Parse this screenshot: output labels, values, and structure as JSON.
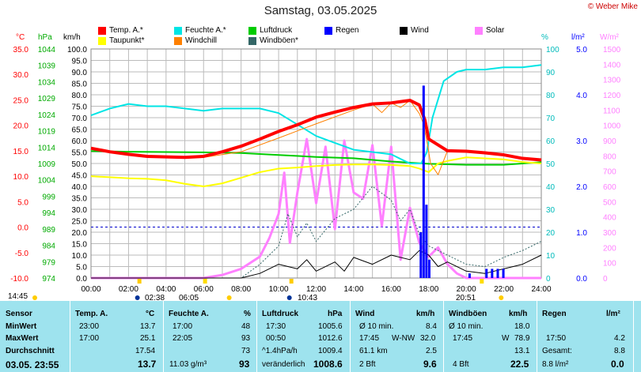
{
  "title": "Samstag, 03.05.2025",
  "credit": "© Weber Mike",
  "units": {
    "temp": "°C",
    "press": "hPa",
    "wind": "km/h",
    "hum": "%",
    "rain": "l/m²",
    "solar": "W/m²"
  },
  "legend": [
    {
      "label": "Temp. A.*",
      "color": "#ff0000"
    },
    {
      "label": "Feuchte A.*",
      "color": "#00e5e5"
    },
    {
      "label": "Luftdruck",
      "color": "#00cc00"
    },
    {
      "label": "Regen",
      "color": "#0000ff"
    },
    {
      "label": "Wind",
      "color": "#000000"
    },
    {
      "label": "Solar",
      "color": "#ff80ff"
    },
    {
      "label": "Taupunkt*",
      "color": "#ffff00"
    },
    {
      "label": "Windchill",
      "color": "#ff8000"
    },
    {
      "label": "Windböen*",
      "color": "#336666"
    }
  ],
  "chart_data": {
    "type": "line",
    "x_ticks": [
      "00:00",
      "02:00",
      "04:00",
      "06:00",
      "08:00",
      "10:00",
      "12:00",
      "14:00",
      "16:00",
      "18:00",
      "20:00",
      "22:00",
      "24:00"
    ],
    "axes": {
      "temp": {
        "ticks": [
          "35.0",
          "30.0",
          "25.0",
          "20.0",
          "15.0",
          "10.0",
          "5.0",
          "0.0",
          "-5.0",
          "-10.0"
        ],
        "range": [
          -10,
          35
        ],
        "unit": "°C"
      },
      "press": {
        "ticks": [
          "1044",
          "1039",
          "1034",
          "1029",
          "1024",
          "1019",
          "1014",
          "1009",
          "1004",
          "999",
          "994",
          "989",
          "984",
          "979",
          "974"
        ],
        "range": [
          974,
          1044
        ],
        "unit": "hPa"
      },
      "wind": {
        "ticks": [
          "100.0",
          "95.0",
          "90.0",
          "85.0",
          "80.0",
          "75.0",
          "70.0",
          "65.0",
          "60.0",
          "55.0",
          "50.0",
          "45.0",
          "40.0",
          "35.0",
          "30.0",
          "25.0",
          "20.0",
          "15.0",
          "10.0",
          "5.0",
          "0.0"
        ],
        "range": [
          0,
          100
        ],
        "unit": "km/h"
      },
      "hum": {
        "ticks": [
          "100",
          "90",
          "80",
          "70",
          "60",
          "50",
          "40",
          "30",
          "20",
          "10",
          "0"
        ],
        "range": [
          0,
          100
        ],
        "unit": "%"
      },
      "rain": {
        "ticks": [
          "5.0",
          "4.0",
          "3.0",
          "2.0",
          "1.0",
          "0.0"
        ],
        "range": [
          0,
          5
        ],
        "unit": "l/m²"
      },
      "solar": {
        "ticks": [
          "1500",
          "1400",
          "1300",
          "1200",
          "1100",
          "1000",
          "900",
          "800",
          "700",
          "600",
          "500",
          "400",
          "300",
          "200",
          "100",
          "0"
        ],
        "range": [
          0,
          1500
        ],
        "unit": "W/m²"
      }
    },
    "series": [
      {
        "name": "Temp. A.*",
        "axis": "temp",
        "color": "#ff0000",
        "x": [
          0,
          1,
          2,
          3,
          4,
          5,
          6,
          7,
          8,
          9,
          10,
          11,
          12,
          13,
          14,
          15,
          16,
          17,
          17.5,
          17.8,
          18,
          19,
          20,
          21,
          22,
          23,
          24
        ],
        "y": [
          15.5,
          14.8,
          14.3,
          13.9,
          13.8,
          13.7,
          13.9,
          14.8,
          15.9,
          17.3,
          18.8,
          20.1,
          21.6,
          22.6,
          23.5,
          24.2,
          24.4,
          24.9,
          24.0,
          21.0,
          17.3,
          15.0,
          14.9,
          14.6,
          14.2,
          13.5,
          13.2
        ]
      },
      {
        "name": "Feuchte A.*",
        "axis": "hum",
        "color": "#00e5e5",
        "x": [
          0,
          1,
          2,
          3,
          4,
          5,
          6,
          7,
          8,
          9,
          10,
          11,
          12,
          13,
          14,
          15,
          16,
          17,
          17.6,
          17.9,
          18.2,
          18.8,
          19.5,
          20,
          21,
          22,
          23,
          24
        ],
        "y": [
          71,
          74,
          76,
          75,
          75,
          74,
          73,
          74,
          74,
          74,
          72,
          67,
          62,
          59,
          56,
          55,
          54,
          50,
          50,
          55,
          70,
          86,
          90,
          91,
          91,
          92,
          92,
          93
        ]
      },
      {
        "name": "Taupunkt*",
        "axis": "temp",
        "color": "#ffff00",
        "x": [
          0,
          1,
          2,
          3,
          4,
          5,
          6,
          7,
          8,
          9,
          10,
          11,
          12,
          13,
          14,
          15,
          16,
          17,
          17.5,
          18,
          18.5,
          19,
          20,
          21,
          22,
          23,
          24
        ],
        "y": [
          10.0,
          9.8,
          9.6,
          9.5,
          9.2,
          8.5,
          8.0,
          8.6,
          9.7,
          10.8,
          11.5,
          11.7,
          12.0,
          12.2,
          12.3,
          12.3,
          12.2,
          12.0,
          11.5,
          10.8,
          12.5,
          13.0,
          13.7,
          13.5,
          13.3,
          12.8,
          12.5
        ]
      },
      {
        "name": "Windchill",
        "axis": "temp",
        "color": "#ff8000",
        "x": [
          0,
          2,
          4,
          6,
          8,
          10,
          12,
          14,
          15,
          15.5,
          16,
          16.5,
          17,
          17.5,
          17.7,
          17.9,
          18.1,
          18.5,
          19,
          20,
          22,
          24
        ],
        "y": [
          15.5,
          14.3,
          13.8,
          13.7,
          14.8,
          17.5,
          20.3,
          23.0,
          24.2,
          22.5,
          24.4,
          23.5,
          24.9,
          22.3,
          20.5,
          17.0,
          12.5,
          10.3,
          15.0,
          14.9,
          14.2,
          13.2
        ]
      },
      {
        "name": "Luftdruck",
        "axis": "press",
        "color": "#00cc00",
        "x": [
          0,
          2,
          4,
          6,
          8,
          10,
          12,
          14,
          16,
          18,
          20,
          22,
          24
        ],
        "y": [
          1012.8,
          1012.6,
          1012.5,
          1012.4,
          1012.2,
          1011.6,
          1011.0,
          1010.6,
          1009.6,
          1008.9,
          1008.6,
          1008.6,
          1009.4
        ]
      },
      {
        "name": "Solar",
        "axis": "solar",
        "color": "#ff80ff",
        "x": [
          0,
          6,
          7,
          8,
          9,
          9.5,
          10,
          10.3,
          10.6,
          11,
          11.5,
          12,
          12.5,
          13,
          13.5,
          14,
          14.5,
          15,
          15.5,
          16,
          16.5,
          17,
          17.5,
          18,
          18.5,
          19,
          19.5,
          20,
          24
        ],
        "y": [
          0,
          0,
          20,
          60,
          140,
          260,
          420,
          690,
          230,
          560,
          910,
          490,
          860,
          320,
          900,
          560,
          520,
          870,
          340,
          860,
          120,
          460,
          230,
          140,
          200,
          90,
          30,
          0,
          0
        ]
      },
      {
        "name": "Wind",
        "axis": "wind",
        "color": "#000000",
        "x": [
          0,
          8,
          9,
          10,
          11,
          11.5,
          12,
          13,
          13.5,
          14,
          15,
          16,
          17,
          17.5,
          18,
          18.5,
          19,
          20,
          21,
          22,
          23,
          24
        ],
        "y": [
          0,
          0,
          2,
          6,
          4,
          8,
          3,
          7,
          3,
          9,
          6,
          10,
          8,
          12,
          10,
          5,
          7,
          3,
          2,
          4,
          6,
          10
        ]
      },
      {
        "name": "Windböen*",
        "axis": "wind",
        "color": "#336666",
        "x": [
          0,
          8,
          9,
          10,
          10.5,
          11,
          11.5,
          12,
          13,
          14,
          15,
          16,
          16.5,
          17,
          17.5,
          18,
          19,
          20,
          21,
          22,
          23,
          24
        ],
        "y": [
          0,
          0,
          6,
          14,
          28,
          18,
          24,
          16,
          26,
          30,
          40,
          34,
          25,
          30,
          19,
          14,
          10,
          6,
          5,
          9,
          12,
          16
        ]
      },
      {
        "name": "Regen",
        "axis": "rain",
        "color": "#0000ff",
        "x": [
          17.6,
          17.75,
          17.9,
          18.05,
          20.2,
          21.1,
          21.4,
          21.7,
          22.0
        ],
        "y": [
          1.0,
          4.2,
          1.6,
          0.4,
          0.1,
          0.2,
          0.2,
          0.2,
          0.2
        ]
      }
    ],
    "sun": {
      "sunrise": "06:05",
      "sunset": "20:51",
      "moonrise": "02:38",
      "moonset": "10:43",
      "left": "14:45"
    }
  },
  "table": {
    "sensor": {
      "header": "Sensor",
      "rows": [
        "MinWert",
        "MaxWert",
        "Durchschnitt"
      ],
      "last": "03.05. 23:55"
    },
    "temp": {
      "header": "Temp. A.",
      "unit": "°C",
      "min_t": "23:00",
      "min_v": "13.7",
      "max_t": "17:00",
      "max_v": "25.1",
      "avg": "17.54",
      "last": "13.7"
    },
    "hum": {
      "header": "Feuchte A.",
      "unit": "%",
      "min_t": "17:00",
      "min_v": "48",
      "max_t": "22:05",
      "max_v": "93",
      "avg": "73",
      "last_extra": "11.03 g/m³",
      "last": "93"
    },
    "press": {
      "header": "Luftdruck",
      "unit": "hPa",
      "min_t": "17:30",
      "min_v": "1005.6",
      "max_t": "00:50",
      "max_v": "1012.6",
      "avg_l": "^1.4hPa/h",
      "avg": "1009.4",
      "trend": "veränderlich",
      "last": "1008.6"
    },
    "wind": {
      "header": "Wind",
      "unit": "km/h",
      "r1_l": "Ø 10 min.",
      "r1_v": "8.4",
      "r2_l": "17:45",
      "r2_m": "W-NW",
      "r2_v": "32.0",
      "r3_l": "61.1 km",
      "r3_v": "2.5",
      "last_l": "2 Bft",
      "last": "9.6"
    },
    "gust": {
      "header": "Windböen",
      "unit": "km/h",
      "r1_l": "Ø 10 min.",
      "r1_v": "18.0",
      "r2_l": "17:45",
      "r2_m": "W",
      "r2_v": "78.9",
      "r3_v": "13.1",
      "last_l": "4 Bft",
      "last": "22.5"
    },
    "rain": {
      "header": "Regen",
      "unit": "l/m²",
      "r2_l": "17:50",
      "r2_v": "4.2",
      "r3_l": "Gesamt:",
      "r3_v": "8.8",
      "last_l": "8.8 l/m²",
      "last": "0.0"
    }
  }
}
